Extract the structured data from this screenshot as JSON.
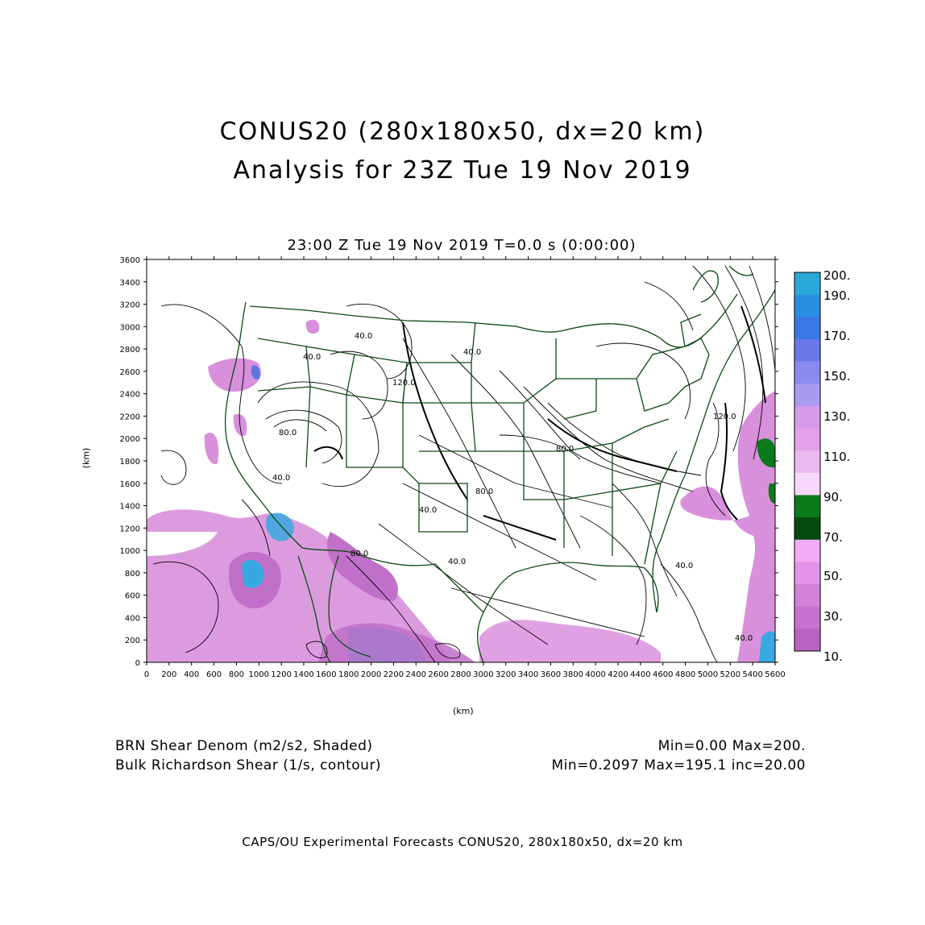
{
  "header": {
    "title_line1": "CONUS20 (280x180x50, dx=20 km)",
    "title_line2": "Analysis for 23Z Tue 19 Nov 2019"
  },
  "plot": {
    "subtitle": "23:00 Z Tue 19 Nov 2019    T=0.0 s (0:00:00)",
    "x_label": "(km)",
    "y_label": "(km)",
    "x_ticks": [
      "0",
      "200",
      "400",
      "600",
      "800",
      "1000",
      "1200",
      "1400",
      "1600",
      "1800",
      "2000",
      "2200",
      "2400",
      "2600",
      "2800",
      "3000",
      "3200",
      "3400",
      "3600",
      "3800",
      "4000",
      "4200",
      "4400",
      "4600",
      "4800",
      "5000",
      "5200",
      "5400",
      "5600"
    ],
    "y_ticks": [
      "0",
      "200",
      "400",
      "600",
      "800",
      "1000",
      "1200",
      "1400",
      "1600",
      "1800",
      "2000",
      "2200",
      "2400",
      "2600",
      "2800",
      "3000",
      "3200",
      "3400",
      "3600"
    ],
    "contour_labels": [
      "40.0",
      "40.0",
      "80.0",
      "40.0",
      "80.0",
      "120.0",
      "40.0",
      "40.0",
      "80.0",
      "40.0",
      "80.0",
      "40.0",
      "120.0",
      "40.0"
    ]
  },
  "colorbar": {
    "labels": [
      "200.",
      "190.",
      "170.",
      "150.",
      "130.",
      "110.",
      "90.",
      "70.",
      "50.",
      "30.",
      "10."
    ],
    "colors": [
      "#2aa8d8",
      "#2a8ee0",
      "#3a78e8",
      "#6a78e8",
      "#8a8af0",
      "#a89cf0",
      "#d49ce8",
      "#e4a0e8",
      "#ecb8f0",
      "#f6d8fa",
      "#0a7a1a",
      "#054a0e",
      "#f4aaf4",
      "#e294e8",
      "#d282da",
      "#c672ce",
      "#b862c2"
    ]
  },
  "legend": {
    "shaded_name": "BRN Shear Denom (m2/s2, Shaded)",
    "contour_name": "Bulk Richardson Shear (1/s, contour)",
    "shaded_range": "Min=0.00 Max=200.",
    "contour_range": "Min=0.2097 Max=195.1 inc=20.00"
  },
  "footer": {
    "text": "CAPS/OU Experimental Forecasts  CONUS20, 280x180x50, dx=20 km"
  },
  "map_colors": {
    "boundary": "#0a4a12",
    "contour": "#000000",
    "shade_light": "#d990dc",
    "shade_mid": "#c070c8",
    "shade_blue": "#38a8e0"
  }
}
